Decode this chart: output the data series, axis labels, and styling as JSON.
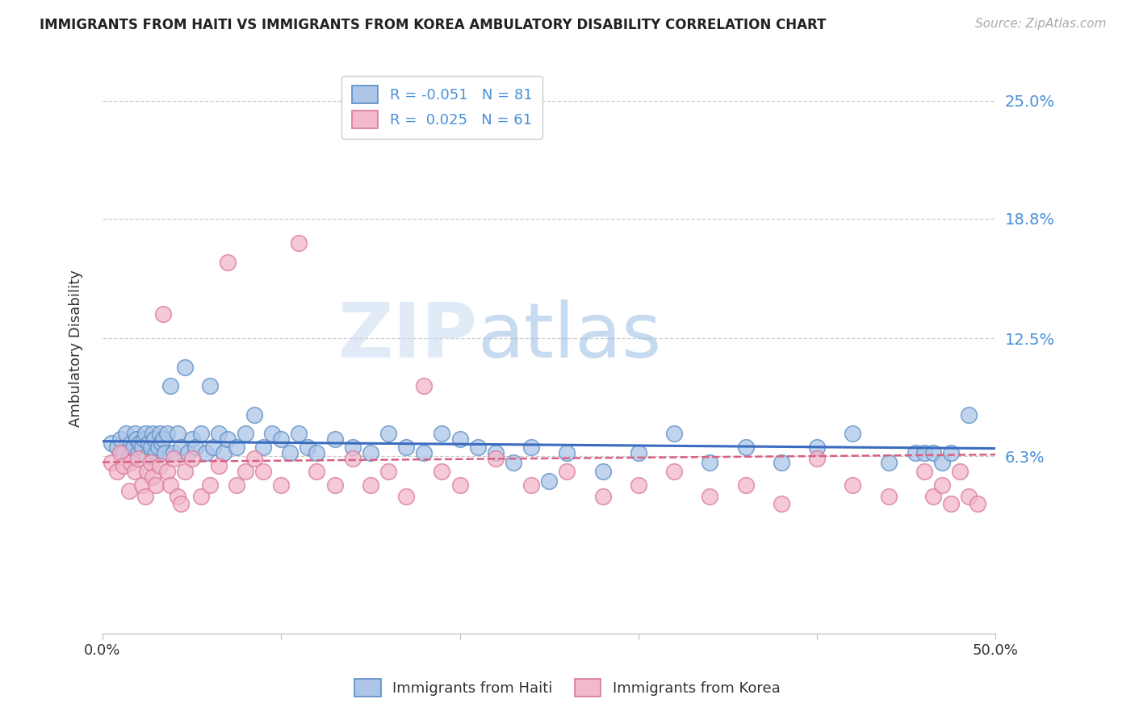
{
  "title": "IMMIGRANTS FROM HAITI VS IMMIGRANTS FROM KOREA AMBULATORY DISABILITY CORRELATION CHART",
  "source": "Source: ZipAtlas.com",
  "ylabel": "Ambulatory Disability",
  "xlim": [
    0.0,
    0.5
  ],
  "ylim": [
    -0.03,
    0.27
  ],
  "yticks": [
    0.063,
    0.125,
    0.188,
    0.25
  ],
  "ytick_labels": [
    "6.3%",
    "12.5%",
    "18.8%",
    "25.0%"
  ],
  "xticks": [
    0.0,
    0.1,
    0.2,
    0.3,
    0.4,
    0.5
  ],
  "xtick_labels": [
    "0.0%",
    "",
    "",
    "",
    "",
    "50.0%"
  ],
  "haiti_color": "#adc6e8",
  "korea_color": "#f2b8cb",
  "haiti_edge": "#5b8ec4",
  "korea_edge": "#d9789a",
  "trend_haiti_color": "#3a6bbf",
  "trend_korea_color": "#d96080",
  "haiti_R": "-0.051",
  "haiti_N": "81",
  "korea_R": "0.025",
  "korea_N": "61",
  "watermark": "ZIPatlas",
  "haiti_x": [
    0.005,
    0.008,
    0.01,
    0.012,
    0.013,
    0.015,
    0.016,
    0.017,
    0.018,
    0.019,
    0.02,
    0.021,
    0.022,
    0.023,
    0.024,
    0.025,
    0.026,
    0.027,
    0.028,
    0.029,
    0.03,
    0.031,
    0.032,
    0.033,
    0.034,
    0.035,
    0.036,
    0.038,
    0.04,
    0.042,
    0.044,
    0.046,
    0.048,
    0.05,
    0.052,
    0.055,
    0.058,
    0.06,
    0.062,
    0.065,
    0.068,
    0.07,
    0.075,
    0.08,
    0.085,
    0.09,
    0.095,
    0.1,
    0.105,
    0.11,
    0.115,
    0.12,
    0.13,
    0.14,
    0.15,
    0.16,
    0.17,
    0.18,
    0.19,
    0.2,
    0.21,
    0.22,
    0.23,
    0.24,
    0.25,
    0.26,
    0.28,
    0.3,
    0.32,
    0.34,
    0.36,
    0.38,
    0.4,
    0.42,
    0.44,
    0.455,
    0.46,
    0.465,
    0.47,
    0.475,
    0.485
  ],
  "haiti_y": [
    0.07,
    0.068,
    0.072,
    0.065,
    0.075,
    0.063,
    0.07,
    0.068,
    0.075,
    0.072,
    0.065,
    0.07,
    0.068,
    0.072,
    0.075,
    0.063,
    0.07,
    0.068,
    0.075,
    0.072,
    0.065,
    0.068,
    0.075,
    0.07,
    0.072,
    0.065,
    0.075,
    0.1,
    0.065,
    0.075,
    0.068,
    0.11,
    0.065,
    0.072,
    0.068,
    0.075,
    0.065,
    0.1,
    0.068,
    0.075,
    0.065,
    0.072,
    0.068,
    0.075,
    0.085,
    0.068,
    0.075,
    0.072,
    0.065,
    0.075,
    0.068,
    0.065,
    0.072,
    0.068,
    0.065,
    0.075,
    0.068,
    0.065,
    0.075,
    0.072,
    0.068,
    0.065,
    0.06,
    0.068,
    0.05,
    0.065,
    0.055,
    0.065,
    0.075,
    0.06,
    0.068,
    0.06,
    0.068,
    0.075,
    0.06,
    0.065,
    0.065,
    0.065,
    0.06,
    0.065,
    0.085
  ],
  "korea_x": [
    0.005,
    0.008,
    0.01,
    0.012,
    0.015,
    0.016,
    0.018,
    0.02,
    0.022,
    0.024,
    0.025,
    0.027,
    0.028,
    0.03,
    0.032,
    0.034,
    0.036,
    0.038,
    0.04,
    0.042,
    0.044,
    0.046,
    0.05,
    0.055,
    0.06,
    0.065,
    0.07,
    0.075,
    0.08,
    0.085,
    0.09,
    0.1,
    0.11,
    0.12,
    0.13,
    0.14,
    0.15,
    0.16,
    0.17,
    0.18,
    0.19,
    0.2,
    0.22,
    0.24,
    0.26,
    0.28,
    0.3,
    0.32,
    0.34,
    0.36,
    0.38,
    0.4,
    0.42,
    0.44,
    0.46,
    0.465,
    0.47,
    0.475,
    0.48,
    0.485,
    0.49
  ],
  "korea_y": [
    0.06,
    0.055,
    0.065,
    0.058,
    0.045,
    0.06,
    0.055,
    0.062,
    0.048,
    0.042,
    0.055,
    0.06,
    0.052,
    0.048,
    0.058,
    0.138,
    0.055,
    0.048,
    0.062,
    0.042,
    0.038,
    0.055,
    0.062,
    0.042,
    0.048,
    0.058,
    0.165,
    0.048,
    0.055,
    0.062,
    0.055,
    0.048,
    0.175,
    0.055,
    0.048,
    0.062,
    0.048,
    0.055,
    0.042,
    0.1,
    0.055,
    0.048,
    0.062,
    0.048,
    0.055,
    0.042,
    0.048,
    0.055,
    0.042,
    0.048,
    0.038,
    0.062,
    0.048,
    0.042,
    0.055,
    0.042,
    0.048,
    0.038,
    0.055,
    0.042,
    0.038
  ]
}
